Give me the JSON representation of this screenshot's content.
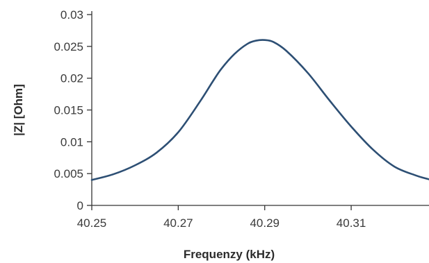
{
  "chart_data": {
    "type": "line",
    "title": "",
    "xlabel": "Frequenzy (kHz)",
    "ylabel": "|Z| [Ohm]",
    "xlim": [
      40.25,
      40.328
    ],
    "ylim": [
      0,
      0.03
    ],
    "x_ticks": [
      40.25,
      40.27,
      40.29,
      40.31
    ],
    "x_tick_labels": [
      "40.25",
      "40.27",
      "40.29",
      "40.31"
    ],
    "y_ticks": [
      0,
      0.005,
      0.01,
      0.015,
      0.02,
      0.025,
      0.03
    ],
    "y_tick_labels": [
      "0",
      "0.005",
      "0.01",
      "0.015",
      "0.02",
      "0.025",
      "0.03"
    ],
    "grid": false,
    "line_color": "#2d4f74",
    "series": [
      {
        "x": [
          40.25,
          40.255,
          40.26,
          40.265,
          40.27,
          40.275,
          40.278,
          40.28,
          40.283,
          40.286,
          40.288,
          40.29,
          40.292,
          40.295,
          40.3,
          40.305,
          40.31,
          40.315,
          40.32,
          40.325,
          40.328
        ],
        "values": [
          0.004,
          0.0049,
          0.0063,
          0.0083,
          0.0115,
          0.0163,
          0.0195,
          0.0215,
          0.0238,
          0.0254,
          0.0259,
          0.026,
          0.0257,
          0.0243,
          0.0208,
          0.0165,
          0.0124,
          0.0088,
          0.0061,
          0.0047,
          0.0041
        ]
      }
    ]
  }
}
